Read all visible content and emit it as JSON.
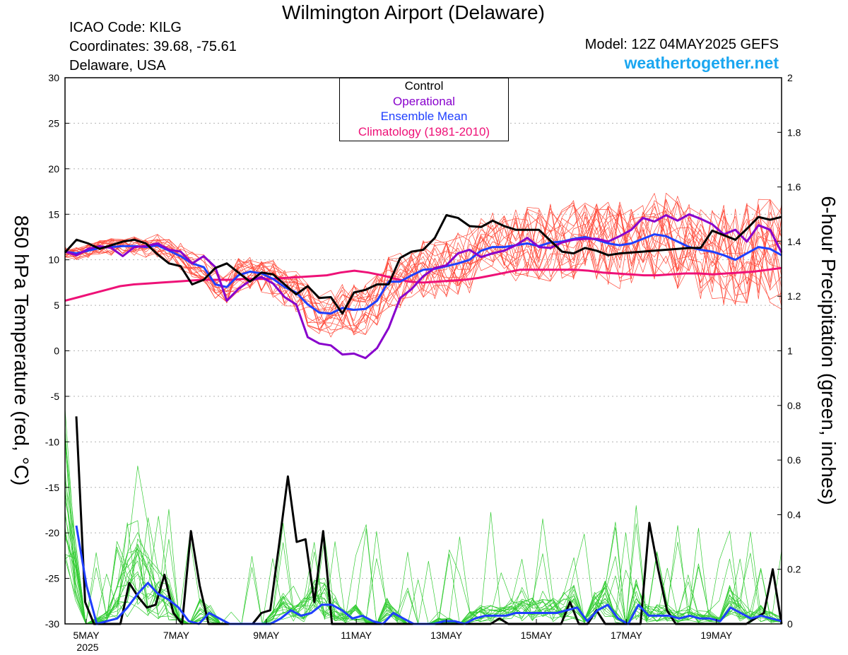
{
  "header": {
    "title": "Wilmington Airport (Delaware)",
    "icao": "ICAO Code: KILG",
    "coordinates": "Coordinates: 39.68, -75.61",
    "region": "Delaware, USA",
    "model": "Model: 12Z 04MAY2025 GEFS",
    "site": "weathertogether.net"
  },
  "colors": {
    "control": "#000000",
    "operational": "#8800cc",
    "ensemble_mean": "#1f3fff",
    "climatology": "#ee1177",
    "members_temp": "#ff4a3a",
    "members_precip": "#33cc33",
    "site": "#1aa6f0"
  },
  "chart_data": {
    "type": "line",
    "xlabel": "",
    "x_ticks": [
      "5MAY",
      "7MAY",
      "9MAY",
      "11MAY",
      "13MAY",
      "15MAY",
      "17MAY",
      "19MAY"
    ],
    "x_year_label": "2025",
    "y_left": {
      "label": "850 hPa Temperature (red, °C)",
      "range": [
        -30,
        30
      ],
      "ticks": [
        "30",
        "25",
        "20",
        "15",
        "10",
        "5",
        "0",
        "-5",
        "-10",
        "-15",
        "-20",
        "-25",
        "-30"
      ]
    },
    "y_right": {
      "label": "6-hour Precipitation (green, inches)",
      "range": [
        0,
        2
      ],
      "ticks": [
        "2",
        "1.8",
        "1.6",
        "1.4",
        "1.2",
        "1",
        "0.8",
        "0.6",
        "0.4",
        "0.2",
        "0"
      ]
    },
    "grid": true,
    "legend": {
      "position": "top-center",
      "entries": [
        "Control",
        "Operational",
        "Ensemble Mean",
        "Climatology (1981-2010)"
      ]
    },
    "series": [
      {
        "name": "Control",
        "kind": "temperature",
        "values": [
          10.8,
          12.2,
          11.8,
          11.2,
          11.6,
          12.0,
          12.2,
          11.8,
          10.6,
          9.6,
          9.3,
          7.3,
          7.8,
          9.1,
          9.6,
          8.6,
          7.6,
          8.6,
          8.4,
          7.3,
          6.2,
          7.1,
          5.8,
          5.9,
          4.1,
          6.4,
          6.7,
          7.3,
          7.3,
          10.2,
          10.9,
          11.1,
          12.4,
          14.9,
          14.6,
          13.7,
          13.6,
          14.3,
          13.7,
          13.3,
          13.3,
          13.3,
          12.1,
          10.9,
          10.7,
          11.3,
          11.0,
          10.5,
          10.7,
          10.8,
          10.9,
          11.0,
          11.1,
          11.2,
          11.3,
          11.3,
          13.2,
          12.7,
          12.2,
          13.4,
          14.7,
          14.4,
          14.7
        ]
      },
      {
        "name": "Operational",
        "kind": "temperature",
        "values": [
          10.9,
          10.5,
          11.2,
          11.5,
          11.3,
          10.4,
          11.4,
          11.5,
          11.8,
          11.1,
          10.9,
          9.6,
          10.4,
          9.2,
          5.5,
          6.8,
          7.7,
          8.1,
          7.4,
          5.9,
          5.1,
          1.5,
          0.8,
          0.6,
          -0.4,
          -0.3,
          -0.8,
          0.3,
          2.5,
          5.8,
          6.8,
          8.2,
          9.1,
          9.4,
          10.7,
          11.1,
          10.3,
          10.7,
          11.0,
          11.6,
          12.4,
          11.4,
          11.3,
          11.9,
          12.2,
          12.3,
          12.3,
          12.0,
          12.6,
          13.3,
          14.6,
          14.2,
          14.9,
          14.3,
          15.0,
          14.5,
          13.9,
          12.8,
          13.3,
          12.0,
          13.8,
          13.3,
          10.8
        ]
      },
      {
        "name": "Ensemble Mean",
        "kind": "temperature",
        "values": [
          10.9,
          10.7,
          11.0,
          11.3,
          11.4,
          11.5,
          11.5,
          11.4,
          11.6,
          11.0,
          10.4,
          9.6,
          9.2,
          7.3,
          7.0,
          8.3,
          8.7,
          8.5,
          7.9,
          7.0,
          6.4,
          5.1,
          4.2,
          4.1,
          4.7,
          4.5,
          4.6,
          5.5,
          7.6,
          7.6,
          8.3,
          8.9,
          9.0,
          9.3,
          9.6,
          10.0,
          11.0,
          11.4,
          11.4,
          11.6,
          11.8,
          11.5,
          11.9,
          12.0,
          12.3,
          12.5,
          12.2,
          11.8,
          11.6,
          11.8,
          12.3,
          12.8,
          12.6,
          12.0,
          11.4,
          11.1,
          10.9,
          10.5,
          10.0,
          10.7,
          11.4,
          11.2,
          10.5
        ]
      },
      {
        "name": "Climatology (1981-2010)",
        "kind": "temperature",
        "values": [
          5.5,
          5.9,
          6.3,
          6.7,
          7.1,
          7.3,
          7.4,
          7.5,
          7.6,
          7.7,
          7.8,
          7.8,
          7.8,
          7.9,
          7.9,
          7.9,
          8.0,
          8.1,
          8.2,
          8.3,
          8.6,
          8.8,
          8.6,
          8.3,
          7.9,
          7.6,
          7.5,
          7.6,
          7.7,
          7.8,
          8.0,
          8.3,
          8.6,
          8.9,
          8.9,
          8.9,
          8.9,
          8.9,
          8.8,
          8.6,
          8.5,
          8.4,
          8.3,
          8.3,
          8.4,
          8.5,
          8.5,
          8.4,
          8.5,
          8.6,
          8.7,
          8.9,
          9.1
        ]
      },
      {
        "name": "Control",
        "kind": "precipitation",
        "values": [
          0.76,
          0.08,
          0.0,
          0.0,
          0.0,
          0.0,
          0.15,
          0.1,
          0.06,
          0.07,
          0.18,
          0.04,
          0.0,
          0.34,
          0.14,
          0.0,
          0.0,
          0.0,
          0.0,
          0.0,
          0.0,
          0.04,
          0.05,
          0.29,
          0.54,
          0.3,
          0.31,
          0.08,
          0.34,
          0.0,
          0.0,
          0.0,
          0.0,
          0.0,
          0.0,
          0.0,
          0.0,
          0.0,
          0.0,
          0.0,
          0.0,
          0.0,
          0.0,
          0.0,
          0.0,
          0.0,
          0.0,
          0.0,
          0.02,
          0.0,
          0.0,
          0.0,
          0.0,
          0.0,
          0.0,
          0.0,
          0.08,
          0.0,
          0.0,
          0.05,
          0.0,
          0.0,
          0.0,
          0.0,
          0.0,
          0.37,
          0.2,
          0.05,
          0.0,
          0.0,
          0.0,
          0.0,
          0.0,
          0.0,
          0.0,
          0.0,
          0.0,
          0.02,
          0.04,
          0.2,
          0.0
        ]
      },
      {
        "name": "Ensemble Mean",
        "kind": "precipitation",
        "values": [
          0.36,
          0.14,
          0.0,
          0.01,
          0.02,
          0.06,
          0.11,
          0.15,
          0.11,
          0.09,
          0.06,
          0.01,
          0.0,
          0.04,
          0.02,
          0.0,
          0.0,
          0.0,
          0.0,
          0.0,
          0.02,
          0.05,
          0.03,
          0.04,
          0.07,
          0.07,
          0.05,
          0.02,
          0.03,
          0.01,
          0.0,
          0.04,
          0.02,
          0.0,
          0.0,
          0.0,
          0.01,
          0.01,
          0.0,
          0.02,
          0.03,
          0.03,
          0.03,
          0.04,
          0.04,
          0.04,
          0.04,
          0.04,
          0.05,
          0.06,
          0.01,
          0.05,
          0.07,
          0.02,
          0.0,
          0.07,
          0.03,
          0.03,
          0.03,
          0.02,
          0.03,
          0.02,
          0.02,
          0.01,
          0.06,
          0.04,
          0.02,
          0.03,
          0.02,
          0.01
        ]
      }
    ]
  }
}
